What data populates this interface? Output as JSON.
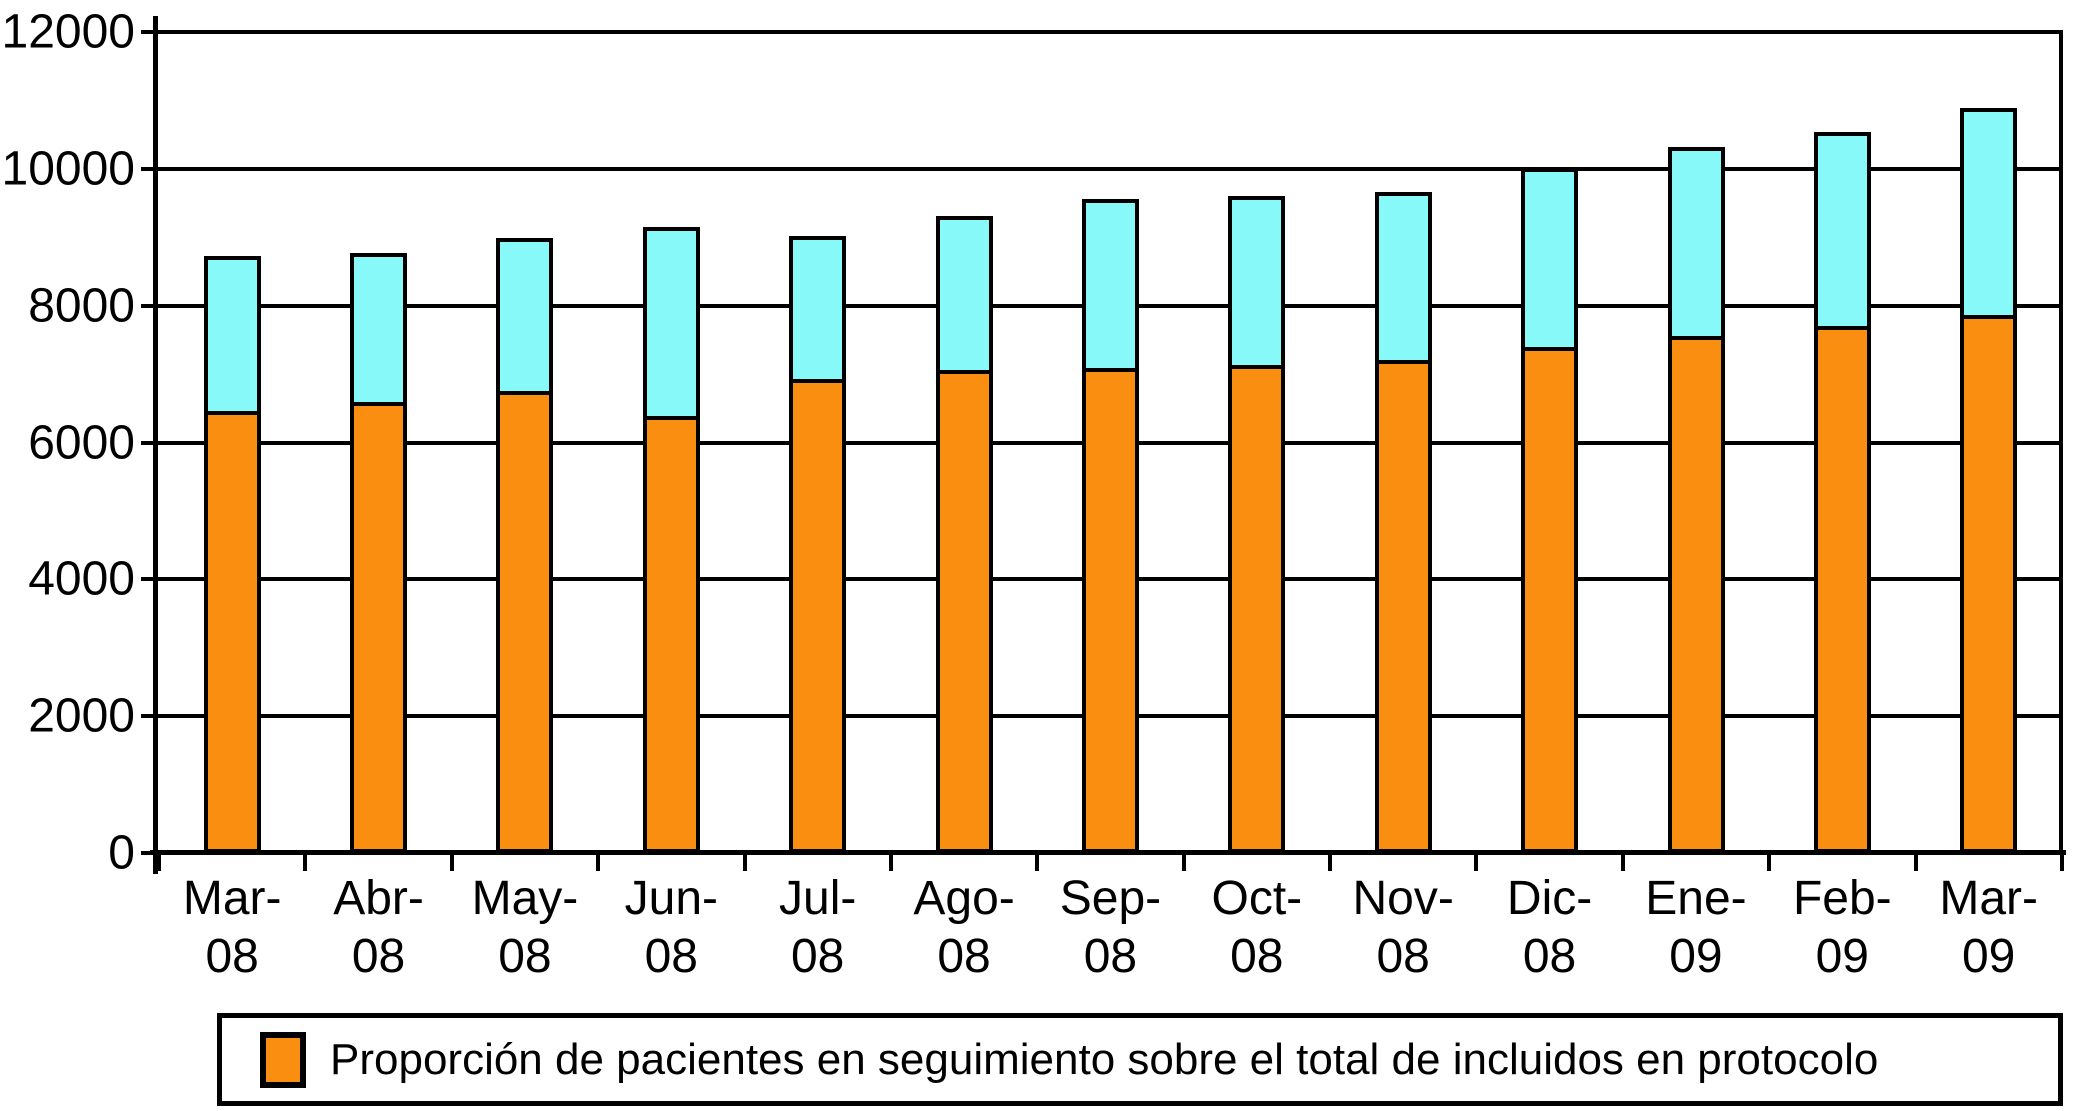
{
  "chart_data": {
    "type": "bar",
    "stacked": true,
    "categories": [
      "Mar-08",
      "Abr-08",
      "May-08",
      "Jun-08",
      "Jul-08",
      "Ago-08",
      "Sep-08",
      "Oct-08",
      "Nov-08",
      "Dic-08",
      "Ene-09",
      "Feb-09",
      "Mar-09"
    ],
    "series": [
      {
        "name": "Proporción de pacientes en seguimiento sobre el total de incluidos en protocolo",
        "color": "#FA8E10",
        "values": [
          6400,
          6540,
          6690,
          6330,
          6870,
          7000,
          7030,
          7080,
          7150,
          7340,
          7500,
          7650,
          7800
        ]
      },
      {
        "name": "",
        "color": "#87F9F9",
        "values": [
          2270,
          2180,
          2230,
          2760,
          2090,
          2250,
          2470,
          2470,
          2460,
          2610,
          2760,
          2830,
          3020
        ]
      }
    ],
    "totals": [
      8670,
      8720,
      8920,
      9090,
      8960,
      9250,
      9500,
      9550,
      9610,
      9950,
      10260,
      10480,
      10820
    ],
    "xlabel": "",
    "ylabel": "",
    "ylim": [
      0,
      12000
    ],
    "yticks": [
      0,
      2000,
      4000,
      6000,
      8000,
      10000,
      12000
    ],
    "grid": true,
    "legend_position": "bottom",
    "legend_entries": [
      "Proporción de pacientes en seguimiento sobre el total de incluidos en protocolo"
    ]
  },
  "legend": {
    "label": "Proporción de pacientes en seguimiento sobre el total de incluidos en protocolo"
  },
  "colors": {
    "bar_fill": "#FA8E10",
    "bar_secondary": "#87F9F9",
    "border": "#000000",
    "background": "#FFFFFF"
  }
}
